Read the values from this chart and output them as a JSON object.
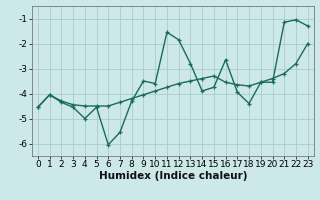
{
  "title": "",
  "xlabel": "Humidex (Indice chaleur)",
  "ylabel": "",
  "background_color": "#cce8e8",
  "grid_color": "#aacccc",
  "line_color": "#1a6b5a",
  "x_data": [
    0,
    1,
    2,
    3,
    4,
    5,
    6,
    7,
    8,
    9,
    10,
    11,
    12,
    13,
    14,
    15,
    16,
    17,
    18,
    19,
    20,
    21,
    22,
    23
  ],
  "y_jagged": [
    -4.55,
    -4.05,
    -4.35,
    -4.55,
    -5.0,
    -4.55,
    -6.05,
    -5.55,
    -4.3,
    -3.5,
    -3.6,
    -1.55,
    -1.85,
    -2.8,
    -3.9,
    -3.75,
    -2.65,
    -3.95,
    -4.4,
    -3.55,
    -3.55,
    -1.15,
    -1.05,
    -1.3
  ],
  "y_trend": [
    -4.55,
    -4.05,
    -4.3,
    -4.45,
    -4.5,
    -4.5,
    -4.5,
    -4.35,
    -4.2,
    -4.05,
    -3.9,
    -3.75,
    -3.6,
    -3.5,
    -3.4,
    -3.3,
    -3.55,
    -3.65,
    -3.7,
    -3.55,
    -3.4,
    -3.2,
    -2.8,
    -2.0
  ],
  "ylim": [
    -6.5,
    -0.5
  ],
  "xlim": [
    -0.5,
    23.5
  ],
  "yticks": [
    -6,
    -5,
    -4,
    -3,
    -2,
    -1
  ],
  "xticks": [
    0,
    1,
    2,
    3,
    4,
    5,
    6,
    7,
    8,
    9,
    10,
    11,
    12,
    13,
    14,
    15,
    16,
    17,
    18,
    19,
    20,
    21,
    22,
    23
  ],
  "tick_fontsize": 6.5,
  "xlabel_fontsize": 7.5,
  "linewidth": 1.0,
  "markersize": 3.0
}
